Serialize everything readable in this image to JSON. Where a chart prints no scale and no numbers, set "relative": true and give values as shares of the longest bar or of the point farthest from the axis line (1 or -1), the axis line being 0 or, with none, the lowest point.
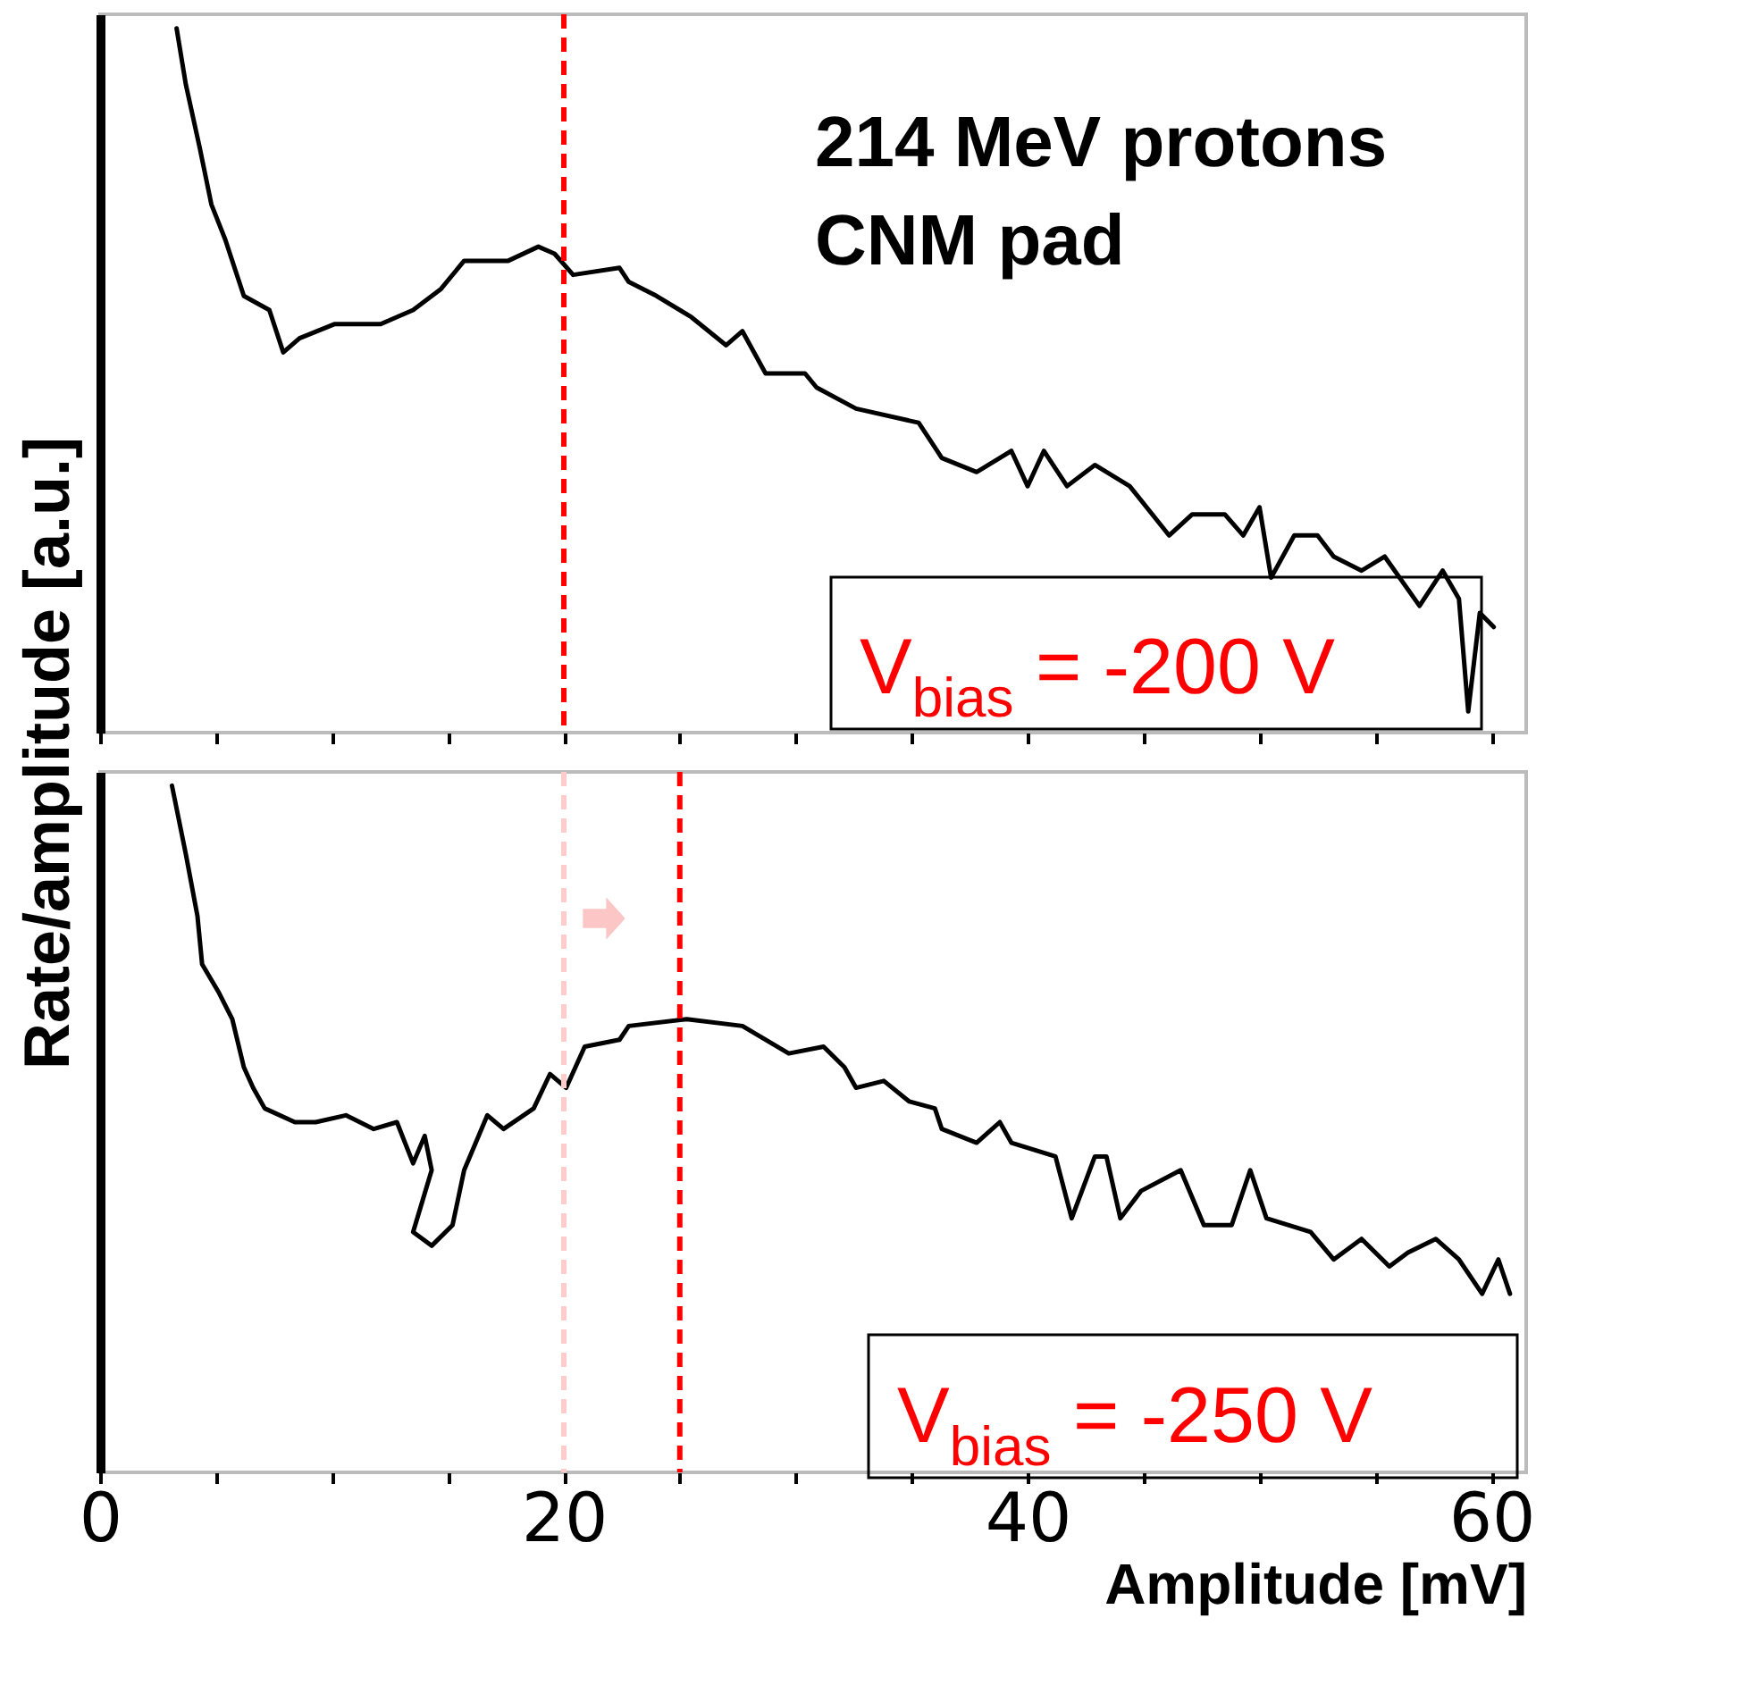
{
  "chart_data": [
    {
      "type": "line",
      "relative": true,
      "ylabel": "Rate/amplitude [a.u.]",
      "tick_labels": false,
      "grid": false,
      "xlim": [
        0,
        61.5
      ],
      "xticks": [
        0,
        {
          "value": 5,
          "label": null
        },
        {
          "value": 10,
          "label": null
        },
        {
          "value": 15,
          "label": null
        },
        20,
        {
          "value": 25,
          "label": null
        },
        {
          "value": 30,
          "label": null
        },
        {
          "value": 35,
          "label": null
        },
        40,
        {
          "value": 45,
          "label": null
        },
        {
          "value": 50,
          "label": null
        },
        {
          "value": 55,
          "label": null
        },
        60
      ],
      "x": [
        3.3,
        3.7,
        4.3,
        4.8,
        5.4,
        6.2,
        7.3,
        7.9,
        8.6,
        10.1,
        12.1,
        13.5,
        14.7,
        15.7,
        17.6,
        18.9,
        19.6,
        20.4,
        22.4,
        22.8,
        24.0,
        25.5,
        27.0,
        27.7,
        28.7,
        30.4,
        30.9,
        32.6,
        35.3,
        36.3,
        37.8,
        39.3,
        40.0,
        40.7,
        41.7,
        42.9,
        44.4,
        46.1,
        47.1,
        48.5,
        49.3,
        50.0,
        50.5,
        51.5,
        52.5,
        53.2,
        54.4,
        55.4,
        56.9,
        57.9,
        58.6,
        59.0,
        59.5,
        60.1
      ],
      "series": [
        {
          "color": "#000000",
          "values": [
            1.0,
            0.92,
            0.83,
            0.75,
            0.7,
            0.62,
            0.6,
            0.54,
            0.56,
            0.58,
            0.58,
            0.6,
            0.63,
            0.67,
            0.67,
            0.69,
            0.68,
            0.65,
            0.66,
            0.64,
            0.62,
            0.59,
            0.55,
            0.57,
            0.51,
            0.51,
            0.49,
            0.46,
            0.44,
            0.39,
            0.37,
            0.4,
            0.35,
            0.4,
            0.35,
            0.38,
            0.35,
            0.28,
            0.31,
            0.31,
            0.28,
            0.32,
            0.22,
            0.28,
            0.28,
            0.25,
            0.23,
            0.25,
            0.18,
            0.23,
            0.19,
            0.03,
            0.17,
            0.15
          ]
        }
      ],
      "ref_lines": [
        {
          "axis": "x",
          "value": 20,
          "color": "#ff0000",
          "line_style": "dashed"
        }
      ],
      "annotations": [
        "214 MeV protons",
        "CNM pad",
        "V$_{bias}$ = -200 V"
      ]
    },
    {
      "type": "line",
      "relative": true,
      "xlabel": "Amplitude [mV]",
      "tick_labels": "x",
      "grid": false,
      "xlim": [
        0,
        61.5
      ],
      "xticks": [
        0,
        {
          "value": 5,
          "label": null
        },
        {
          "value": 10,
          "label": null
        },
        {
          "value": 15,
          "label": null
        },
        20,
        {
          "value": 25,
          "label": null
        },
        {
          "value": 30,
          "label": null
        },
        {
          "value": 35,
          "label": null
        },
        40,
        {
          "value": 45,
          "label": null
        },
        {
          "value": 50,
          "label": null
        },
        {
          "value": 55,
          "label": null
        },
        60
      ],
      "x": [
        3.1,
        3.7,
        4.2,
        4.4,
        5.1,
        5.7,
        6.2,
        6.6,
        7.1,
        8.4,
        9.3,
        10.6,
        11.8,
        12.8,
        13.5,
        14.0,
        14.3,
        13.5,
        14.3,
        15.2,
        15.7,
        16.7,
        17.4,
        18.7,
        19.4,
        20.1,
        20.9,
        22.4,
        22.8,
        25.3,
        27.7,
        29.7,
        31.2,
        32.1,
        32.6,
        33.8,
        34.9,
        36.0,
        36.3,
        37.8,
        38.8,
        39.3,
        41.2,
        41.9,
        42.9,
        43.4,
        44.0,
        44.9,
        46.6,
        47.6,
        48.8,
        49.6,
        50.3,
        52.2,
        53.2,
        54.4,
        55.6,
        56.4,
        57.6,
        58.6,
        59.6,
        60.3,
        60.8
      ],
      "series": [
        {
          "color": "#000000",
          "values": [
            1.0,
            0.9,
            0.81,
            0.74,
            0.7,
            0.66,
            0.59,
            0.56,
            0.53,
            0.51,
            0.51,
            0.52,
            0.5,
            0.51,
            0.45,
            0.49,
            0.44,
            0.35,
            0.33,
            0.36,
            0.44,
            0.52,
            0.5,
            0.53,
            0.58,
            0.56,
            0.62,
            0.63,
            0.65,
            0.66,
            0.65,
            0.61,
            0.62,
            0.59,
            0.56,
            0.57,
            0.54,
            0.53,
            0.5,
            0.48,
            0.51,
            0.48,
            0.46,
            0.37,
            0.46,
            0.46,
            0.37,
            0.41,
            0.44,
            0.36,
            0.36,
            0.44,
            0.37,
            0.35,
            0.31,
            0.34,
            0.3,
            0.32,
            0.34,
            0.31,
            0.26,
            0.31,
            0.26
          ]
        }
      ],
      "ref_lines": [
        {
          "axis": "x",
          "value": 20,
          "color": "#ffcccc",
          "line_style": "dashed"
        },
        {
          "axis": "x",
          "value": 25,
          "color": "#ff0000",
          "line_style": "dashed"
        }
      ],
      "annotations": [
        "V$_{bias}$ = -250 V"
      ]
    }
  ]
}
